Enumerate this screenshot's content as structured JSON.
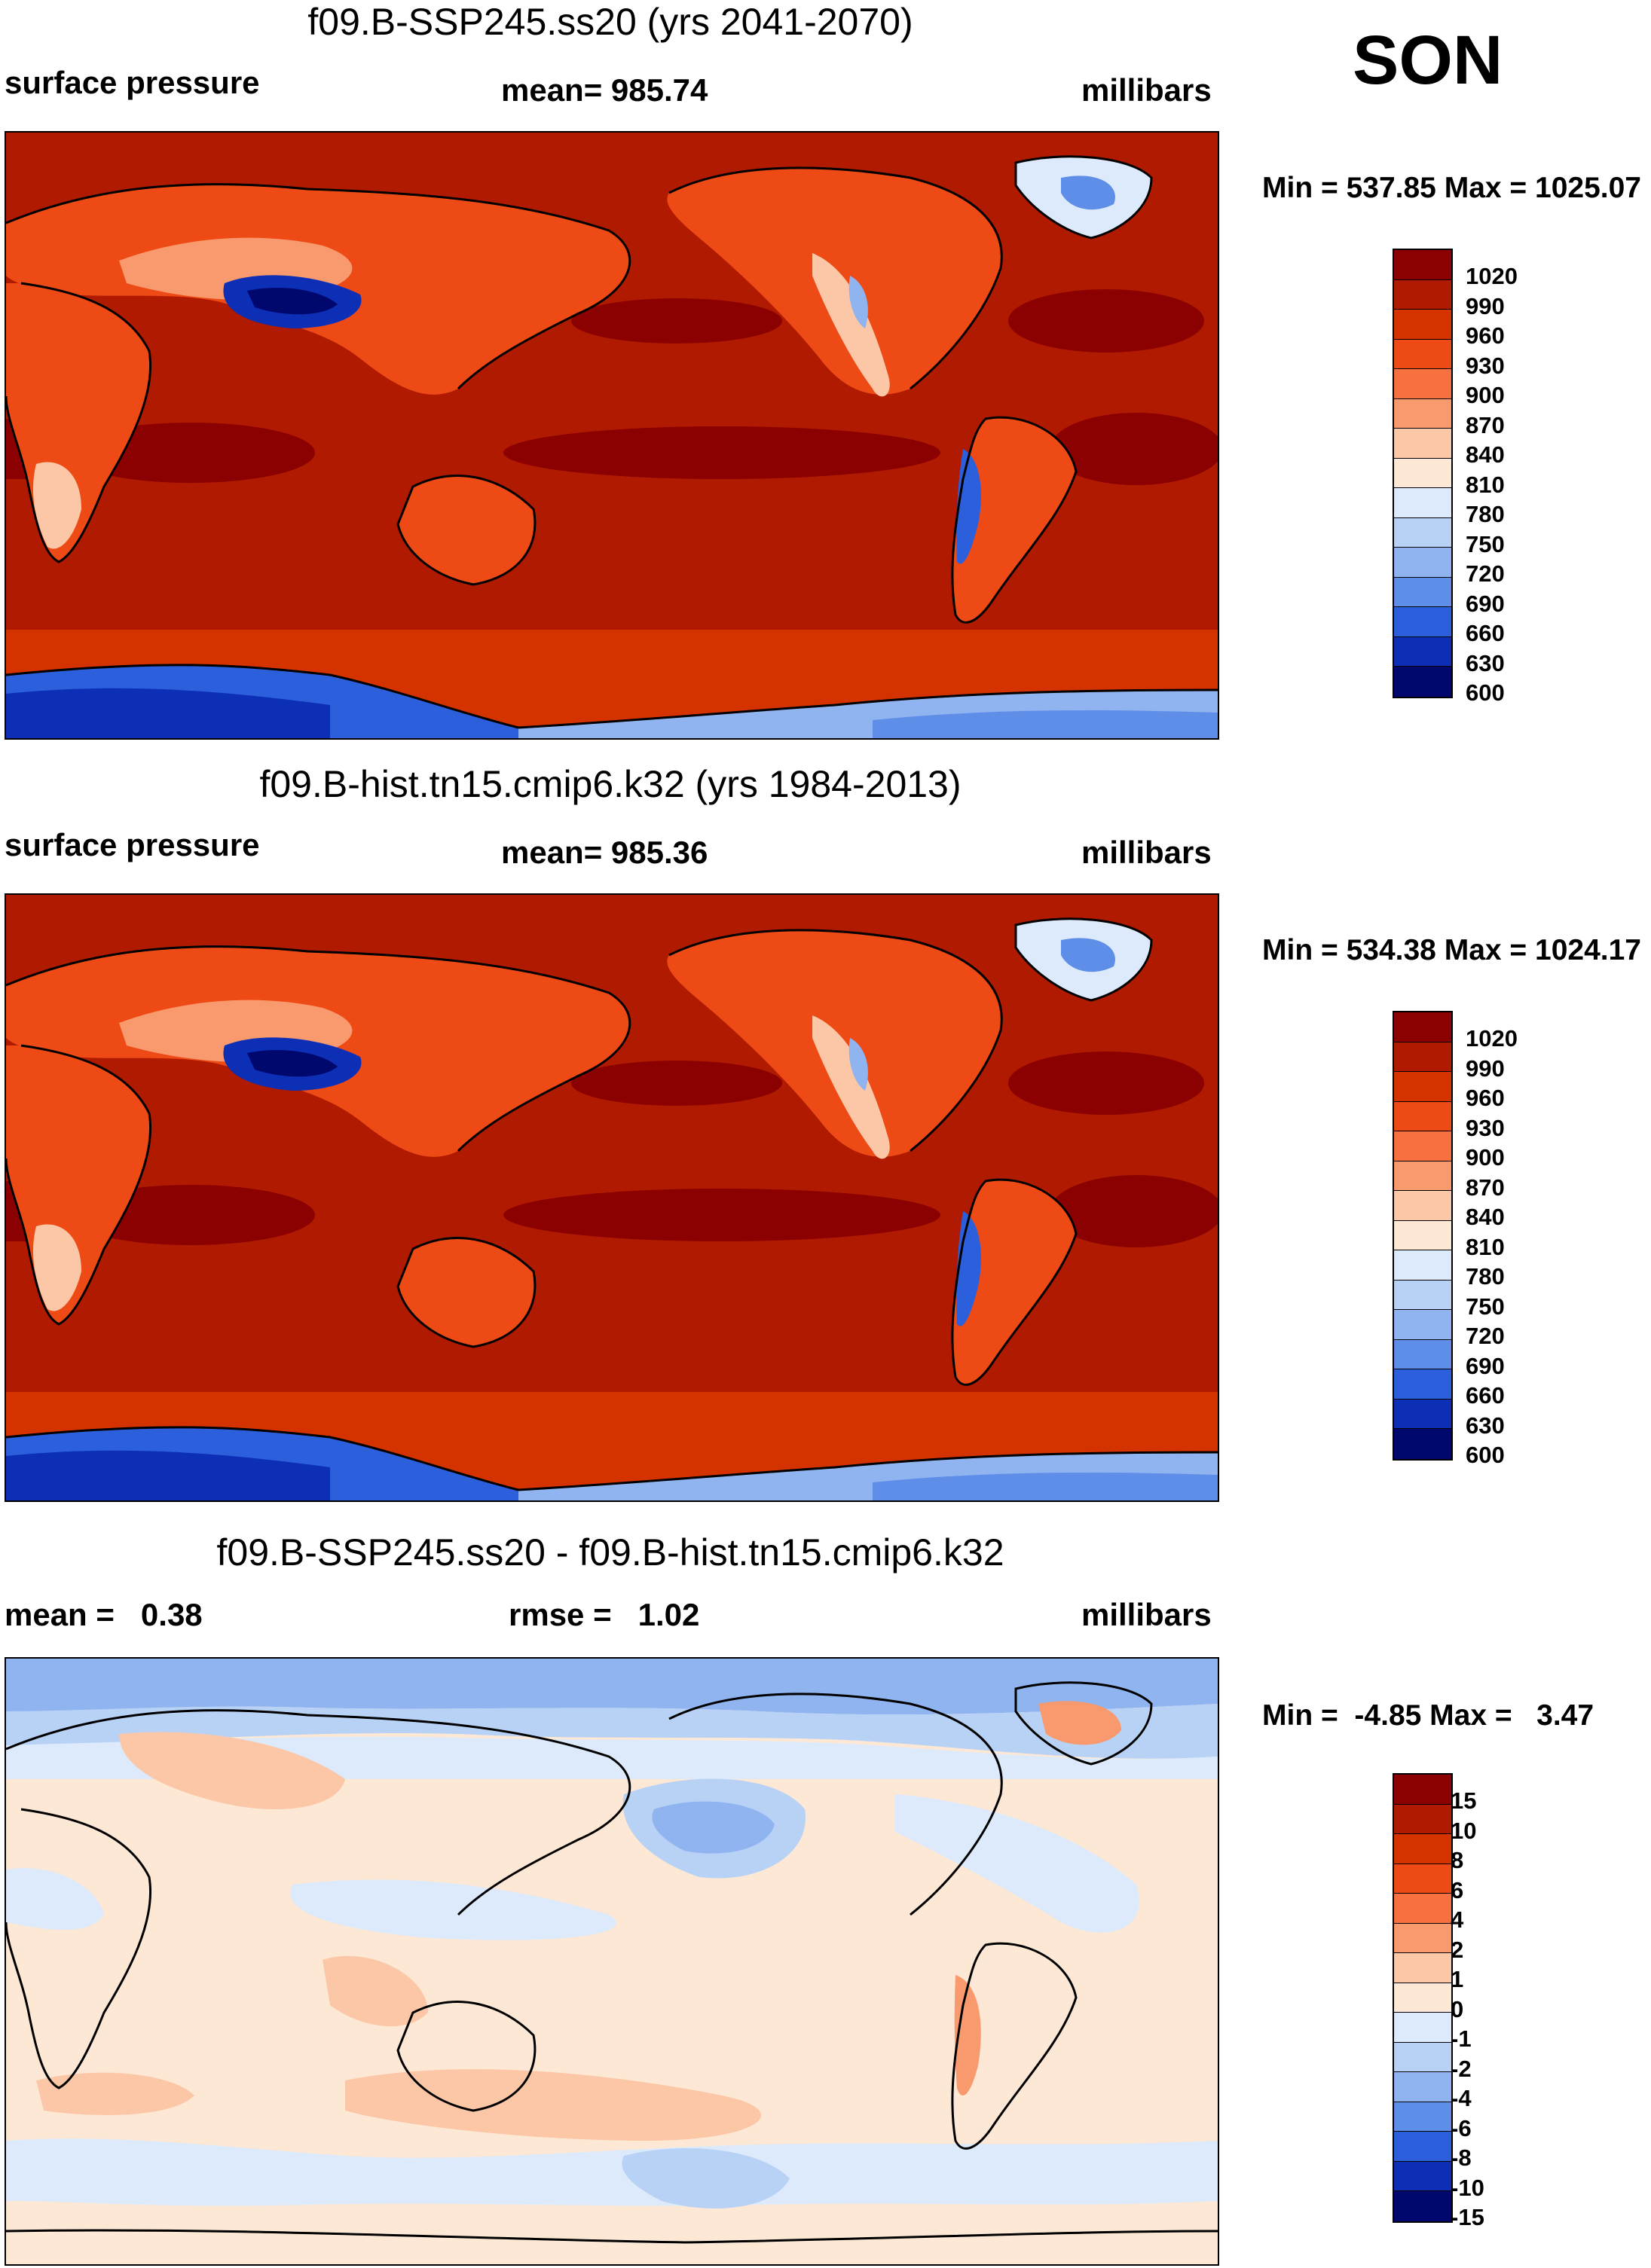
{
  "season": "SON",
  "units": "millibars",
  "panels": [
    {
      "title": "f09.B-SSP245.ss20 (yrs 2041-2070)",
      "left_label": "surface pressure",
      "center_label": "mean= 985.74",
      "right_label": "millibars",
      "minmax": "Min = 537.85 Max = 1025.07",
      "palette": "abs",
      "levels": [
        "1020",
        "990",
        "960",
        "930",
        "900",
        "870",
        "840",
        "810",
        "780",
        "750",
        "720",
        "690",
        "660",
        "630",
        "600"
      ]
    },
    {
      "title": "f09.B-hist.tn15.cmip6.k32 (yrs 1984-2013)",
      "left_label": "surface pressure",
      "center_label": "mean= 985.36",
      "right_label": "millibars",
      "minmax": "Min = 534.38 Max = 1024.17",
      "palette": "abs",
      "levels": [
        "1020",
        "990",
        "960",
        "930",
        "900",
        "870",
        "840",
        "810",
        "780",
        "750",
        "720",
        "690",
        "660",
        "630",
        "600"
      ]
    },
    {
      "title": "f09.B-SSP245.ss20 - f09.B-hist.tn15.cmip6.k32",
      "left_label": "mean =   0.38",
      "center_label": "rmse =   1.02",
      "right_label": "millibars",
      "minmax": "Min =  -4.85 Max =   3.47",
      "palette": "diff",
      "levels": [
        "15",
        "10",
        "8",
        "6",
        "4",
        "2",
        "1",
        "0",
        "-1",
        "-2",
        "-4",
        "-6",
        "-8",
        "-10",
        "-15"
      ]
    }
  ],
  "colors": {
    "abs": [
      "#8b0000",
      "#b01a00",
      "#d43300",
      "#ee4a16",
      "#f7703f",
      "#f99a6e",
      "#fcc7a6",
      "#fde8d6",
      "#dceafb",
      "#b8d2f6",
      "#8fb4f0",
      "#5f8ee8",
      "#2c5fdc",
      "#0c2fb5",
      "#00086e"
    ],
    "diff": [
      "#8b0000",
      "#b01a00",
      "#d43300",
      "#ee4a16",
      "#f7703f",
      "#f99a6e",
      "#fcc7a6",
      "#fde8d6",
      "#dceafb",
      "#b8d2f6",
      "#8fb4f0",
      "#5f8ee8",
      "#2c5fdc",
      "#0c2fb5",
      "#00086e"
    ]
  }
}
